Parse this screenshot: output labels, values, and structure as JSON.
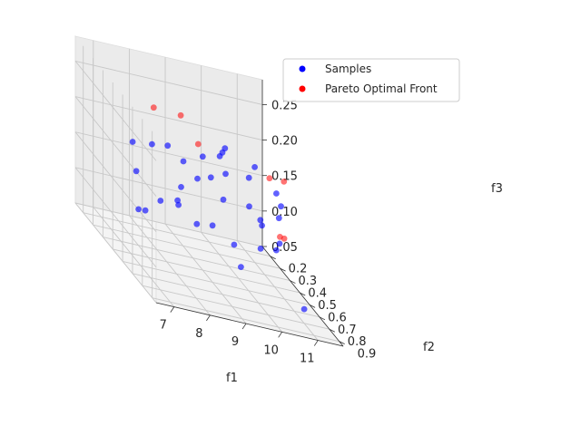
{
  "chart_data": {
    "type": "scatter",
    "projection": "3d",
    "grid": true,
    "legend_placement": "top-right",
    "legend": [
      {
        "label": "Samples",
        "color": "#0000ff"
      },
      {
        "label": "Pareto Optimal Front",
        "color": "#ff0000"
      }
    ],
    "axes": {
      "x": {
        "label": "f1",
        "range": [
          6.5,
          11.7
        ],
        "ticks": [
          "7",
          "8",
          "9",
          "10",
          "11"
        ]
      },
      "y": {
        "label": "f2",
        "range": [
          0.12,
          0.94
        ],
        "ticks": [
          "0.2",
          "0.3",
          "0.4",
          "0.5",
          "0.6",
          "0.7",
          "0.8",
          "0.9"
        ]
      },
      "z": {
        "label": "f3",
        "range": [
          0.05,
          0.285
        ],
        "ticks": [
          "0.05",
          "0.10",
          "0.15",
          "0.20",
          "0.25"
        ]
      }
    },
    "series": [
      {
        "name": "Samples",
        "color": "#0000ff",
        "points": [
          [
            7.9,
            0.25,
            0.08
          ],
          [
            8.2,
            0.21,
            0.075
          ],
          [
            10.2,
            0.45,
            0.06
          ],
          [
            11.0,
            0.8,
            0.07
          ],
          [
            8.1,
            0.4,
            0.12
          ],
          [
            8.6,
            0.4,
            0.12
          ],
          [
            8.3,
            0.5,
            0.14
          ],
          [
            8.7,
            0.55,
            0.12
          ],
          [
            9.0,
            0.6,
            0.13
          ],
          [
            9.6,
            0.6,
            0.11
          ],
          [
            10.2,
            0.65,
            0.12
          ],
          [
            10.5,
            0.7,
            0.13
          ],
          [
            7.6,
            0.3,
            0.18
          ],
          [
            8.0,
            0.35,
            0.19
          ],
          [
            8.3,
            0.4,
            0.2
          ],
          [
            8.6,
            0.45,
            0.19
          ],
          [
            8.8,
            0.52,
            0.18
          ],
          [
            9.3,
            0.6,
            0.17
          ],
          [
            9.8,
            0.68,
            0.18
          ],
          [
            10.3,
            0.8,
            0.19
          ],
          [
            10.4,
            0.77,
            0.15
          ],
          [
            10.1,
            0.7,
            0.16
          ],
          [
            9.0,
            0.5,
            0.21
          ],
          [
            9.5,
            0.55,
            0.2
          ],
          [
            9.2,
            0.6,
            0.23
          ],
          [
            9.9,
            0.7,
            0.24
          ],
          [
            10.5,
            0.7,
            0.21
          ],
          [
            8.9,
            0.62,
            0.2
          ],
          [
            7.7,
            0.3,
            0.14
          ],
          [
            8.4,
            0.5,
            0.16
          ],
          [
            9.4,
            0.58,
            0.24
          ],
          [
            9.0,
            0.7,
            0.25
          ],
          [
            10.3,
            0.82,
            0.21
          ],
          [
            9.6,
            0.75,
            0.23
          ],
          [
            10.0,
            0.72,
            0.17
          ]
        ]
      },
      {
        "name": "Pareto Optimal Front",
        "color": "#ff0000",
        "points": [
          [
            7.5,
            0.55,
            0.27
          ],
          [
            8.6,
            0.6,
            0.24
          ],
          [
            9.9,
            0.85,
            0.25
          ],
          [
            10.3,
            0.85,
            0.25
          ],
          [
            10.5,
            0.78,
            0.16
          ],
          [
            10.6,
            0.7,
            0.15
          ],
          [
            8.8,
            0.35,
            0.24
          ]
        ]
      }
    ]
  }
}
